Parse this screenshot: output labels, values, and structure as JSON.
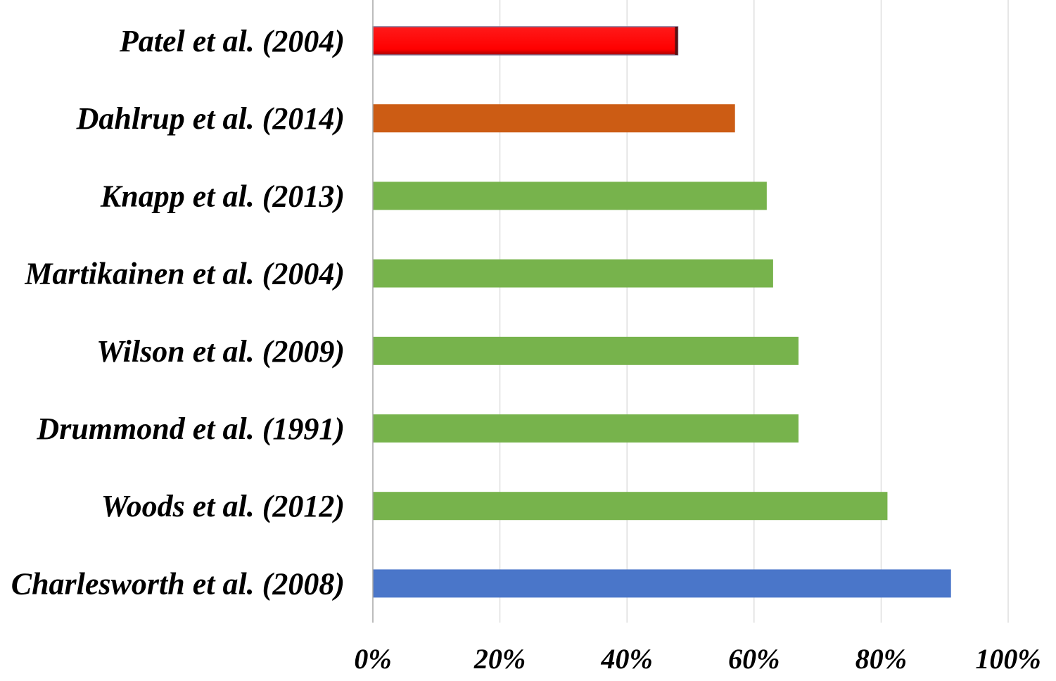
{
  "chart_data": {
    "type": "bar",
    "orientation": "horizontal",
    "title": "",
    "xlabel": "",
    "ylabel": "",
    "xlim": [
      0,
      100
    ],
    "grid": true,
    "legend": "none",
    "categories": [
      "Patel et al. (2004)",
      "Dahlrup et al. (2014)",
      "Knapp et al. (2013)",
      "Martikainen et al. (2004)",
      "Wilson et al. (2009)",
      "Drummond et al. (1991)",
      "Woods et al. (2012)",
      "Charlesworth et al. (2008)"
    ],
    "values": [
      48,
      57,
      62,
      63,
      67,
      67,
      81,
      91
    ],
    "colors": [
      "#ff0000",
      "#cc5c14",
      "#77b34c",
      "#77b34c",
      "#77b34c",
      "#77b34c",
      "#77b34c",
      "#4a76c9"
    ],
    "x_ticks": [
      "0%",
      "20%",
      "40%",
      "60%",
      "80%",
      "100%"
    ],
    "x_tick_values": [
      0,
      20,
      40,
      60,
      80,
      100
    ]
  }
}
